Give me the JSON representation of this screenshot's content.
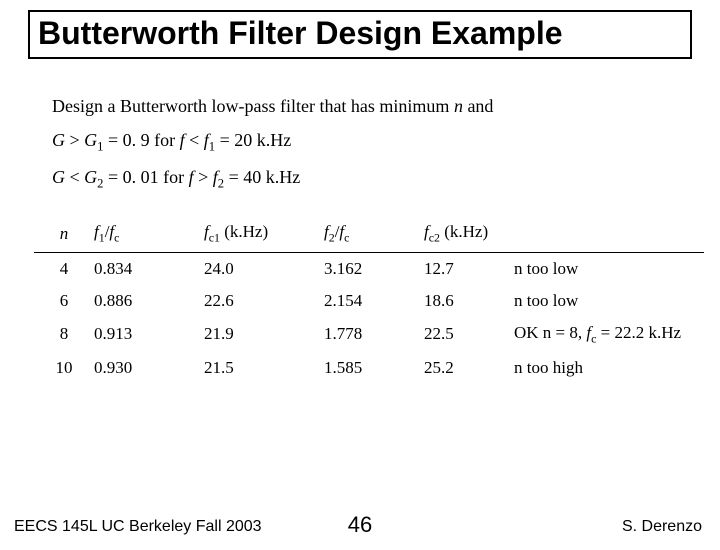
{
  "title": "Butterworth Filter Design Example",
  "spec": {
    "line1_pre": "Design a Butterworth low-pass filter that has minimum ",
    "line1_n": "n",
    "line1_post": " and",
    "line2": "G > G₁ = 0.9 for f < f₁ = 20 k.Hz",
    "line3": "G < G₂ = 0.01 for f > f₂ = 40 k.Hz"
  },
  "table": {
    "columns": [
      "n",
      "f1/fc",
      "fc1 (k.Hz)",
      "f2/fc",
      "fc2 (k.Hz)",
      ""
    ],
    "rows": [
      {
        "n": "4",
        "f1fc": "0.834",
        "fc1": "24.0",
        "f2fc": "3.162",
        "fc2": "12.7",
        "note": "n too low"
      },
      {
        "n": "6",
        "f1fc": "0.886",
        "fc1": "22.6",
        "f2fc": "2.154",
        "fc2": "18.6",
        "note": "n too low"
      },
      {
        "n": "8",
        "f1fc": "0.913",
        "fc1": "21.9",
        "f2fc": "1.778",
        "fc2": "22.5",
        "note": "OK n = 8, f꜀ = 22.2 k.Hz"
      },
      {
        "n": "10",
        "f1fc": "0.930",
        "fc1": "21.5",
        "f2fc": "1.585",
        "fc2": "25.2",
        "note": "n too high"
      }
    ]
  },
  "footer": {
    "left": "EECS 145L UC Berkeley Fall 2003",
    "mid": "46",
    "right": "S. Derenzo"
  }
}
